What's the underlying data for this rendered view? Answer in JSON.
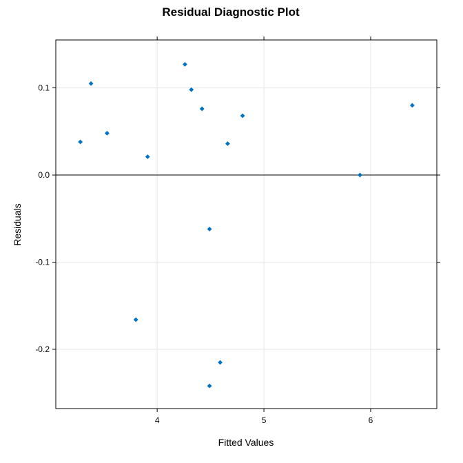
{
  "chart_data": {
    "type": "scatter",
    "title": "Residual Diagnostic Plot",
    "xlabel": "Fitted Values",
    "ylabel": "Residuals",
    "xlim": [
      3.05,
      6.62
    ],
    "ylim": [
      -0.268,
      0.155
    ],
    "x_ticks": [
      4,
      5,
      6
    ],
    "y_ticks": [
      -0.2,
      -0.1,
      0.0,
      0.1
    ],
    "x_tick_labels": [
      "4",
      "5",
      "6"
    ],
    "y_tick_labels": [
      "-0.2",
      "-0.1",
      "0.0",
      "0.1"
    ],
    "reference_line_y": 0.0,
    "grid": true,
    "point_color": "#0072C6",
    "points": [
      {
        "x": 3.28,
        "y": 0.038
      },
      {
        "x": 3.38,
        "y": 0.105
      },
      {
        "x": 3.53,
        "y": 0.048
      },
      {
        "x": 3.8,
        "y": -0.166
      },
      {
        "x": 3.91,
        "y": 0.021
      },
      {
        "x": 4.26,
        "y": 0.127
      },
      {
        "x": 4.32,
        "y": 0.098
      },
      {
        "x": 4.42,
        "y": 0.076
      },
      {
        "x": 4.49,
        "y": -0.062
      },
      {
        "x": 4.49,
        "y": -0.242
      },
      {
        "x": 4.59,
        "y": -0.215
      },
      {
        "x": 4.66,
        "y": 0.036
      },
      {
        "x": 4.8,
        "y": 0.068
      },
      {
        "x": 5.9,
        "y": 0.0
      },
      {
        "x": 6.39,
        "y": 0.08
      }
    ]
  }
}
